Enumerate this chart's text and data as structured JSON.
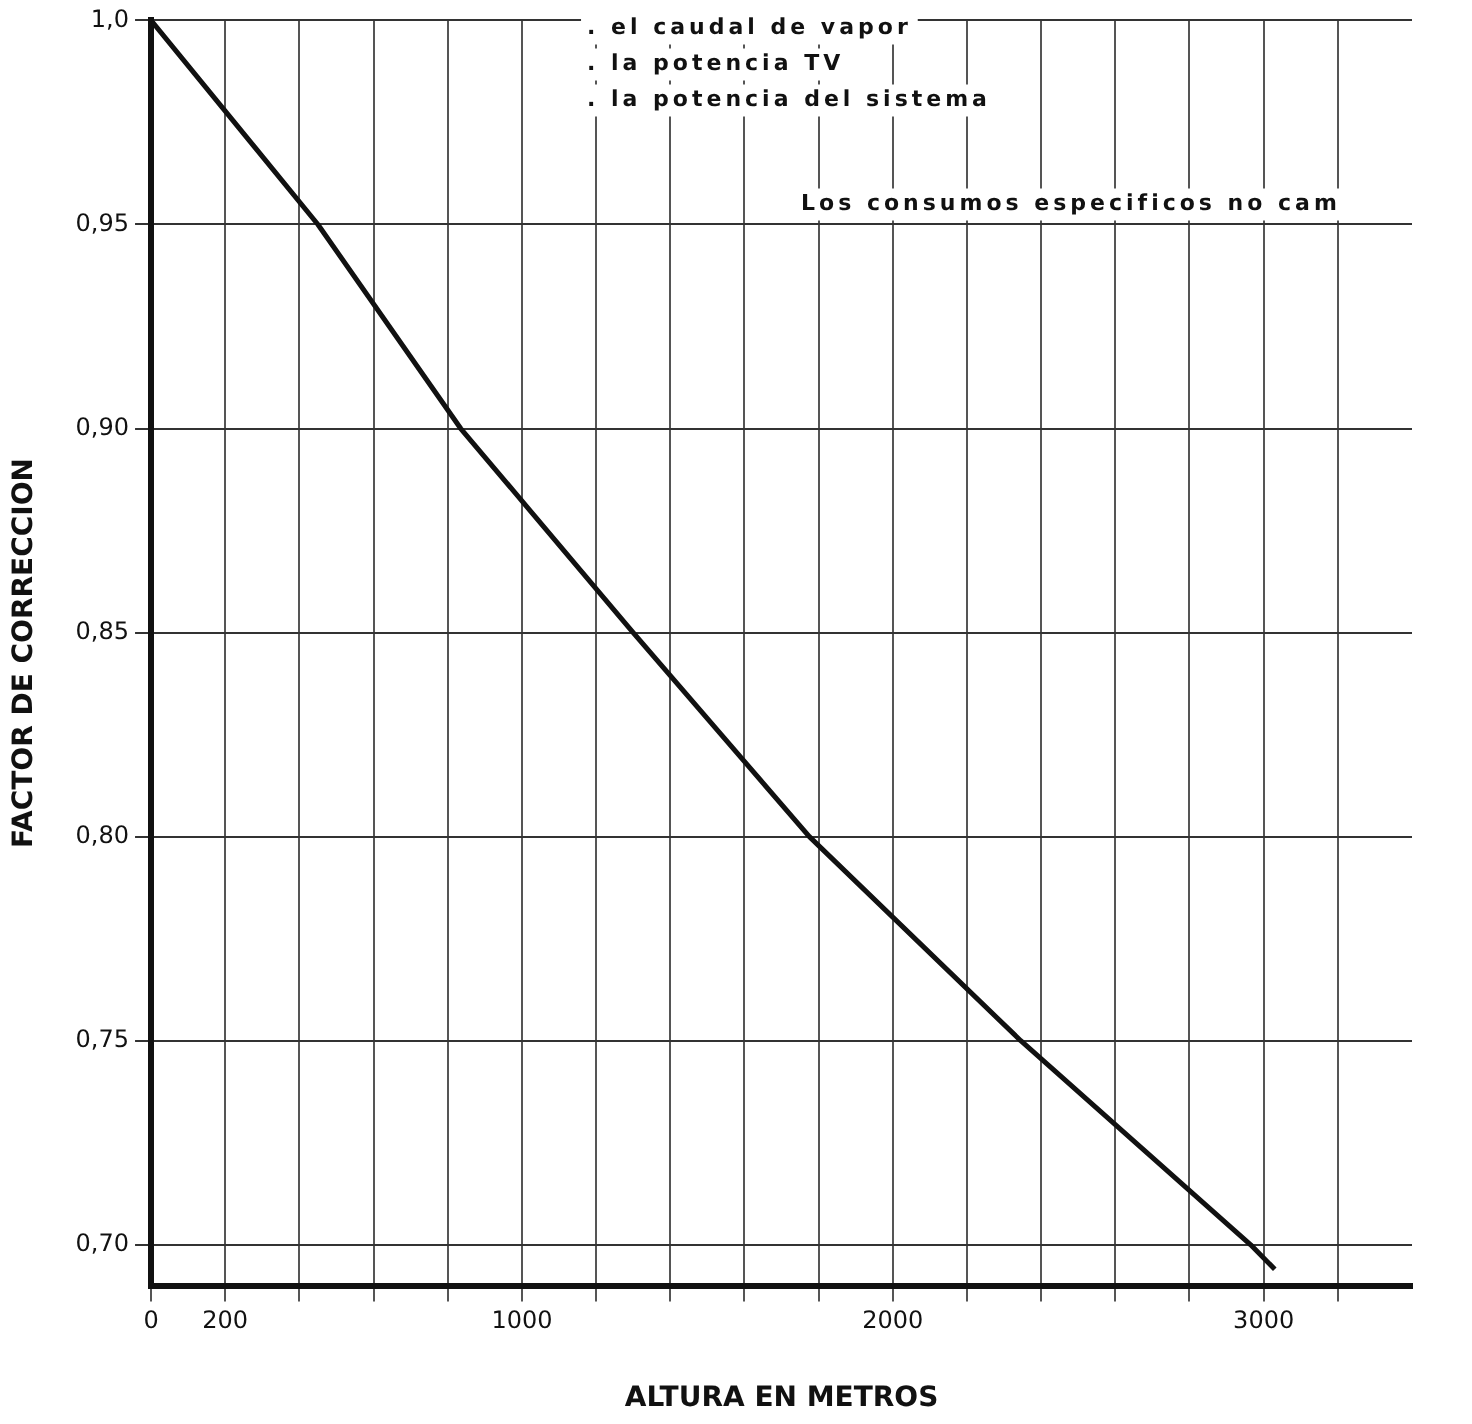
{
  "chart_data": {
    "type": "line",
    "xlabel": "ALTURA EN METROS",
    "ylabel": "FACTOR DE CORRECCION",
    "annotations": [
      ". el caudal de vapor",
      ". la potencia TV",
      ". la potencia del sistema",
      "Los consumos especificos no cam"
    ],
    "series": [
      {
        "color": "#111111",
        "x": [
          0,
          450,
          835,
          1300,
          1775,
          2345,
          2965,
          3030
        ],
        "values": [
          1.0,
          0.95,
          0.9,
          0.85,
          0.8,
          0.75,
          0.7,
          0.694
        ]
      }
    ],
    "xlim": [
      0,
      3400
    ],
    "ylim": [
      0.69,
      1.0
    ],
    "xticks": [
      0,
      200,
      {
        "value": 400,
        "label": null
      },
      {
        "value": 600,
        "label": null
      },
      {
        "value": 800,
        "label": null
      },
      1000,
      {
        "value": 1200,
        "label": null
      },
      {
        "value": 1400,
        "label": null
      },
      {
        "value": 1600,
        "label": null
      },
      {
        "value": 1800,
        "label": null
      },
      2000,
      {
        "value": 2200,
        "label": null
      },
      {
        "value": 2400,
        "label": null
      },
      {
        "value": 2600,
        "label": null
      },
      {
        "value": 2800,
        "label": null
      },
      3000,
      {
        "value": 3200,
        "label": null
      }
    ],
    "yticks": [
      {
        "value": 0.7,
        "label": "0,70"
      },
      {
        "value": 0.75,
        "label": "0,75"
      },
      {
        "value": 0.8,
        "label": "0,80"
      },
      {
        "value": 0.85,
        "label": "0,85"
      },
      {
        "value": 0.9,
        "label": "0,90"
      },
      {
        "value": 0.95,
        "label": "0,95"
      },
      {
        "value": 1.0,
        "label": "1,0"
      }
    ],
    "grid": true,
    "legend": false,
    "marker": "none",
    "line_style": "solid"
  }
}
